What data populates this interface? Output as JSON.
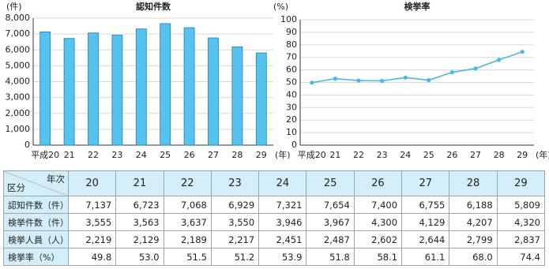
{
  "chart_data": [
    {
      "type": "bar",
      "title": "認知件数",
      "y_unit": "(件)",
      "x_unit": "(年)",
      "categories": [
        "平成20",
        "21",
        "22",
        "23",
        "24",
        "25",
        "26",
        "27",
        "28",
        "29"
      ],
      "values": [
        7137,
        6723,
        7068,
        6929,
        7321,
        7654,
        7400,
        6755,
        6188,
        5809
      ],
      "color": "#55c3ee",
      "ylim": [
        0,
        8000
      ],
      "yticks": [
        0,
        {
          "value": 1000,
          "label": "1,000"
        },
        {
          "value": 2000,
          "label": "2,000"
        },
        {
          "value": 3000,
          "label": "3,000"
        },
        {
          "value": 4000,
          "label": "4,000"
        },
        {
          "value": 5000,
          "label": "5,000"
        },
        {
          "value": 6000,
          "label": "6,000"
        },
        {
          "value": 7000,
          "label": "7,000"
        },
        {
          "value": 8000,
          "label": "8,000"
        }
      ],
      "grid": true
    },
    {
      "type": "line",
      "title": "検挙率",
      "y_unit": "(%)",
      "x_unit": "(年)",
      "categories": [
        "平成20",
        "21",
        "22",
        "23",
        "24",
        "25",
        "26",
        "27",
        "28",
        "29"
      ],
      "values": [
        49.8,
        53.0,
        51.5,
        51.2,
        53.9,
        51.8,
        58.1,
        61.1,
        68.0,
        74.4
      ],
      "color": "#45b9e8",
      "ylim": [
        0,
        100
      ],
      "yticks": [
        0,
        10,
        20,
        30,
        40,
        50,
        60,
        70,
        80,
        90,
        100
      ],
      "grid": true
    }
  ],
  "table": {
    "corner_top": "年次",
    "corner_bottom": "区分",
    "columns": [
      "20",
      "21",
      "22",
      "23",
      "24",
      "25",
      "26",
      "27",
      "28",
      "29"
    ],
    "rows": [
      {
        "label": "認知件数（件）",
        "cells": [
          "7,137",
          "6,723",
          "7,068",
          "6,929",
          "7,321",
          "7,654",
          "7,400",
          "6,755",
          "6,188",
          "5,809"
        ]
      },
      {
        "label": "検挙件数（件）",
        "cells": [
          "3,555",
          "3,563",
          "3,637",
          "3,550",
          "3,946",
          "3,967",
          "4,300",
          "4,129",
          "4,207",
          "4,320"
        ]
      },
      {
        "label": "検挙人員（人）",
        "cells": [
          "2,219",
          "2,129",
          "2,189",
          "2,217",
          "2,451",
          "2,487",
          "2,602",
          "2,644",
          "2,799",
          "2,837"
        ]
      },
      {
        "label": "検挙率（%）",
        "cells": [
          "49.8",
          "53.0",
          "51.5",
          "51.2",
          "53.9",
          "51.8",
          "58.1",
          "61.1",
          "68.0",
          "74.4"
        ]
      }
    ]
  }
}
